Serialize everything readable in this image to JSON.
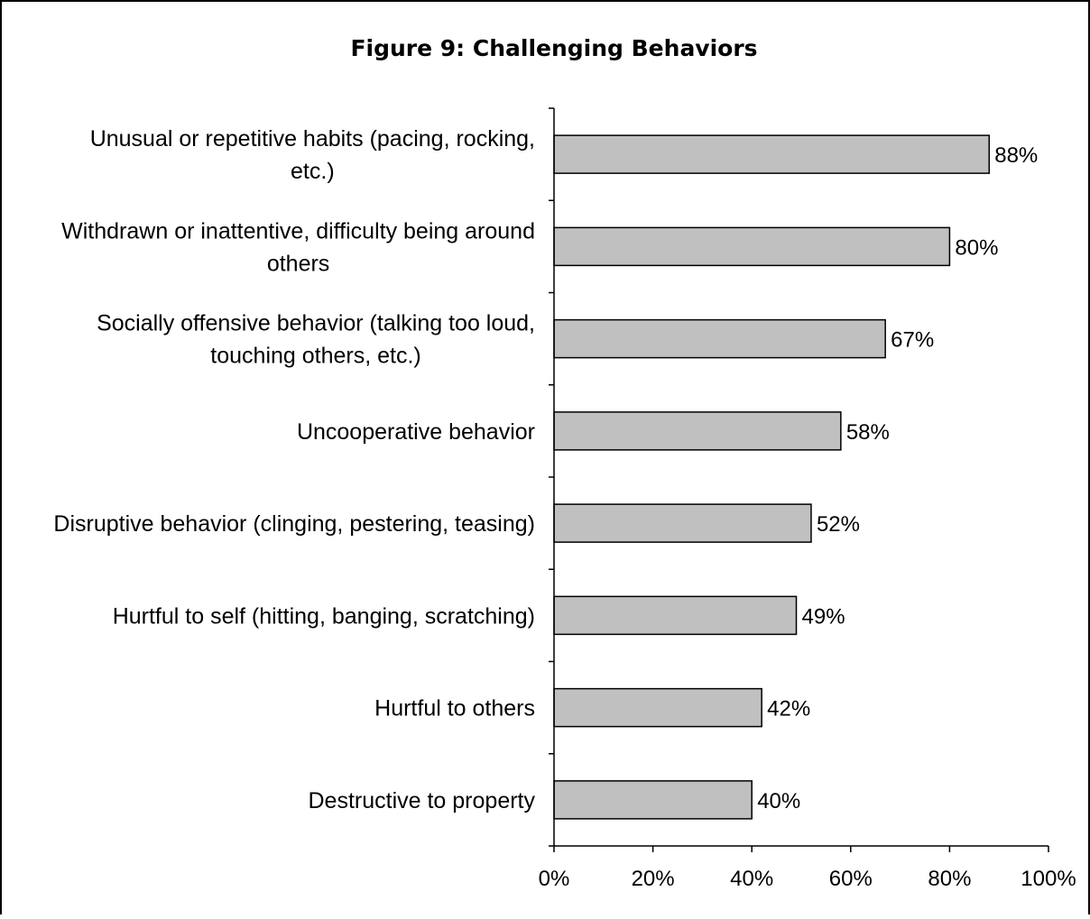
{
  "chart_data": {
    "type": "bar",
    "orientation": "horizontal",
    "title": "Figure 9:  Challenging Behaviors",
    "categories": [
      [
        "Unusual or repetitive habits (pacing, rocking,",
        "etc.)"
      ],
      [
        "Withdrawn or inattentive, difficulty being around",
        "others"
      ],
      [
        "Socially offensive behavior (talking too loud,",
        "touching others, etc.)"
      ],
      [
        "Uncooperative behavior"
      ],
      [
        "Disruptive behavior (clinging, pestering, teasing)"
      ],
      [
        "Hurtful to self (hitting, banging, scratching)"
      ],
      [
        "Hurtful to others"
      ],
      [
        "Destructive to property"
      ]
    ],
    "values": [
      88,
      80,
      67,
      58,
      52,
      49,
      42,
      40
    ],
    "data_labels": [
      "88%",
      "80%",
      "67%",
      "58%",
      "52%",
      "49%",
      "42%",
      "40%"
    ],
    "x_ticks": [
      "0%",
      "20%",
      "40%",
      "60%",
      "80%",
      "100%"
    ],
    "xlim": [
      0,
      100
    ],
    "grid": false,
    "bar_color": "#c0c0c0",
    "legend": "none"
  }
}
